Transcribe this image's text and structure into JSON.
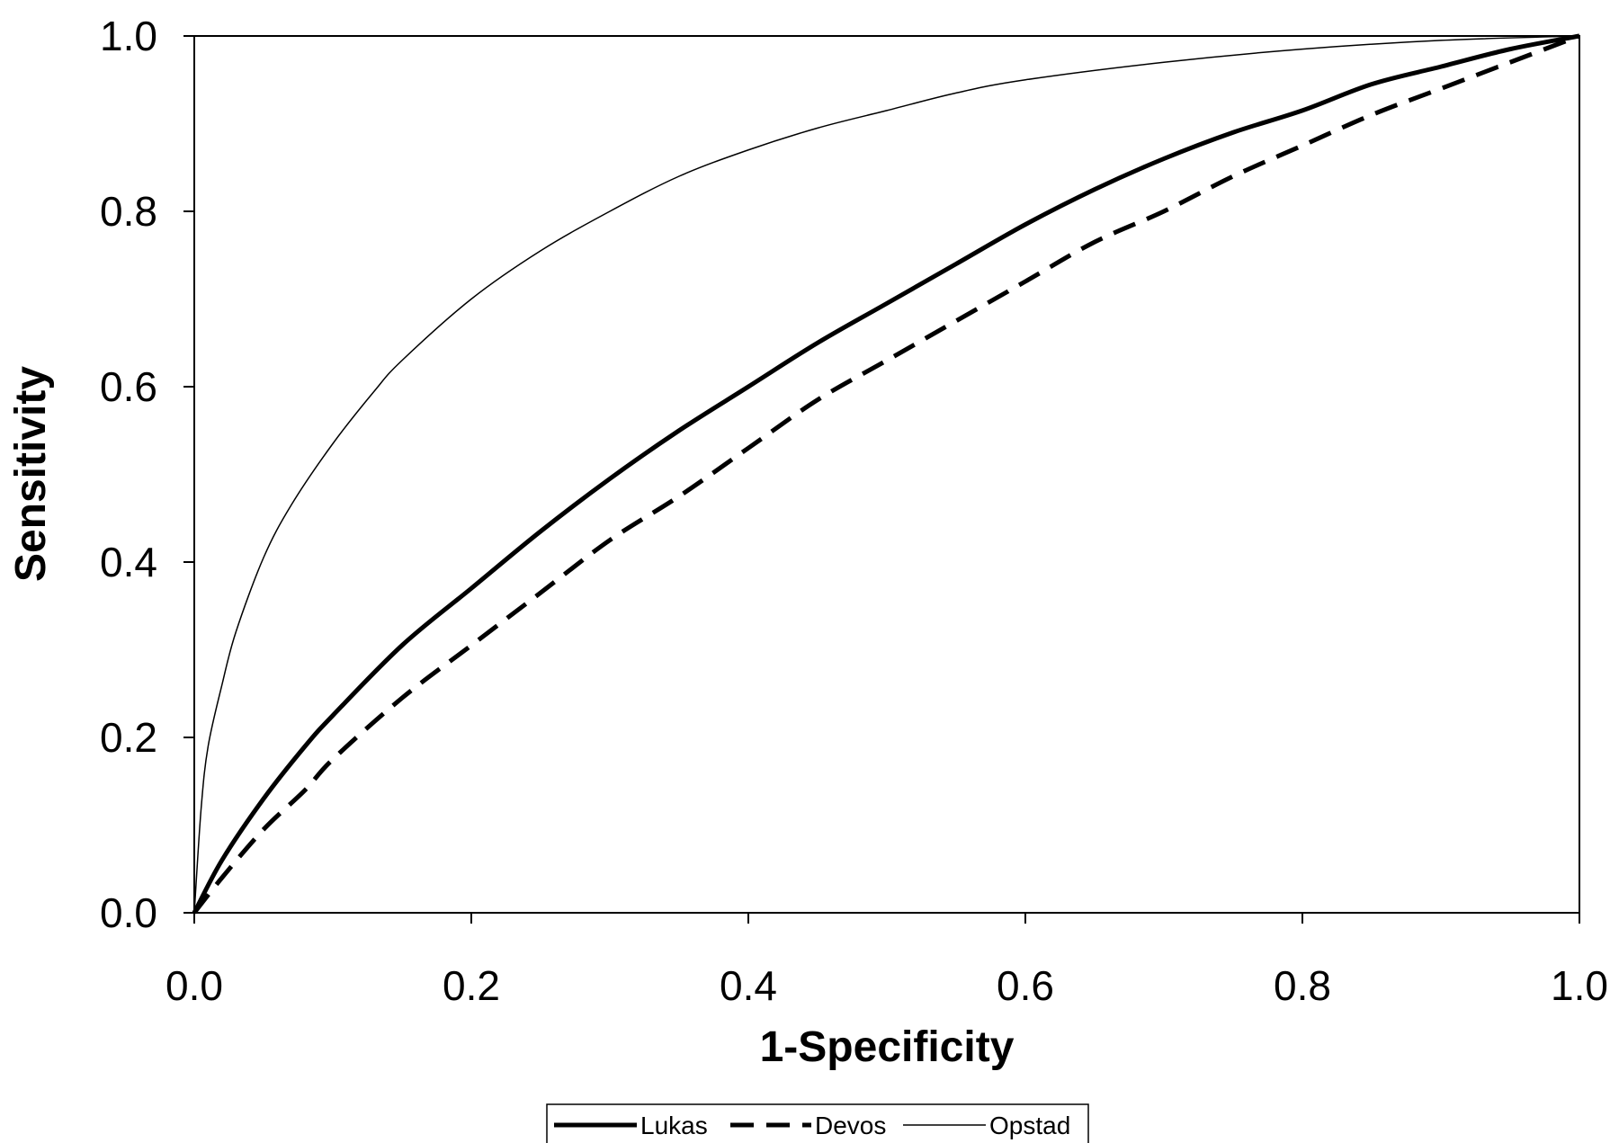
{
  "chart_data": {
    "type": "line",
    "xlabel": "1-Specificity",
    "ylabel": "Sensitivity",
    "xlim": [
      0.0,
      1.0
    ],
    "ylim": [
      0.0,
      1.0
    ],
    "x_ticks": [
      "0.0",
      "0.2",
      "0.4",
      "0.6",
      "0.8",
      "1.0"
    ],
    "y_ticks": [
      "0.0",
      "0.2",
      "0.4",
      "0.6",
      "0.8",
      "1.0"
    ],
    "grid": false,
    "legend_position": "bottom-center",
    "series": [
      {
        "name": "Lukas",
        "style": "thick-solid",
        "color": "#000000",
        "points": [
          [
            0,
            0
          ],
          [
            0.02,
            0.06
          ],
          [
            0.05,
            0.13
          ],
          [
            0.08,
            0.19
          ],
          [
            0.1,
            0.225
          ],
          [
            0.15,
            0.305
          ],
          [
            0.2,
            0.37
          ],
          [
            0.25,
            0.435
          ],
          [
            0.3,
            0.495
          ],
          [
            0.35,
            0.55
          ],
          [
            0.4,
            0.6
          ],
          [
            0.45,
            0.65
          ],
          [
            0.5,
            0.695
          ],
          [
            0.55,
            0.74
          ],
          [
            0.6,
            0.785
          ],
          [
            0.65,
            0.825
          ],
          [
            0.7,
            0.86
          ],
          [
            0.75,
            0.89
          ],
          [
            0.8,
            0.915
          ],
          [
            0.85,
            0.945
          ],
          [
            0.9,
            0.965
          ],
          [
            0.95,
            0.985
          ],
          [
            1,
            1
          ]
        ]
      },
      {
        "name": "Devos",
        "style": "thick-dashed",
        "color": "#000000",
        "points": [
          [
            0,
            0
          ],
          [
            0.02,
            0.04
          ],
          [
            0.05,
            0.095
          ],
          [
            0.08,
            0.14
          ],
          [
            0.1,
            0.175
          ],
          [
            0.15,
            0.245
          ],
          [
            0.2,
            0.305
          ],
          [
            0.25,
            0.365
          ],
          [
            0.3,
            0.425
          ],
          [
            0.35,
            0.475
          ],
          [
            0.4,
            0.53
          ],
          [
            0.45,
            0.585
          ],
          [
            0.5,
            0.63
          ],
          [
            0.55,
            0.675
          ],
          [
            0.6,
            0.72
          ],
          [
            0.65,
            0.765
          ],
          [
            0.7,
            0.8
          ],
          [
            0.75,
            0.84
          ],
          [
            0.8,
            0.875
          ],
          [
            0.85,
            0.91
          ],
          [
            0.9,
            0.94
          ],
          [
            0.95,
            0.97
          ],
          [
            1,
            1
          ]
        ]
      },
      {
        "name": "Opstad",
        "style": "thin-solid",
        "color": "#000000",
        "points": [
          [
            0,
            0
          ],
          [
            0.005,
            0.12
          ],
          [
            0.01,
            0.19
          ],
          [
            0.02,
            0.26
          ],
          [
            0.03,
            0.32
          ],
          [
            0.05,
            0.405
          ],
          [
            0.07,
            0.465
          ],
          [
            0.1,
            0.535
          ],
          [
            0.13,
            0.595
          ],
          [
            0.15,
            0.63
          ],
          [
            0.2,
            0.7
          ],
          [
            0.25,
            0.755
          ],
          [
            0.3,
            0.8
          ],
          [
            0.35,
            0.84
          ],
          [
            0.4,
            0.87
          ],
          [
            0.45,
            0.895
          ],
          [
            0.5,
            0.915
          ],
          [
            0.55,
            0.935
          ],
          [
            0.6,
            0.95
          ],
          [
            0.7,
            0.97
          ],
          [
            0.8,
            0.985
          ],
          [
            0.9,
            0.995
          ],
          [
            1,
            1
          ]
        ]
      }
    ]
  }
}
